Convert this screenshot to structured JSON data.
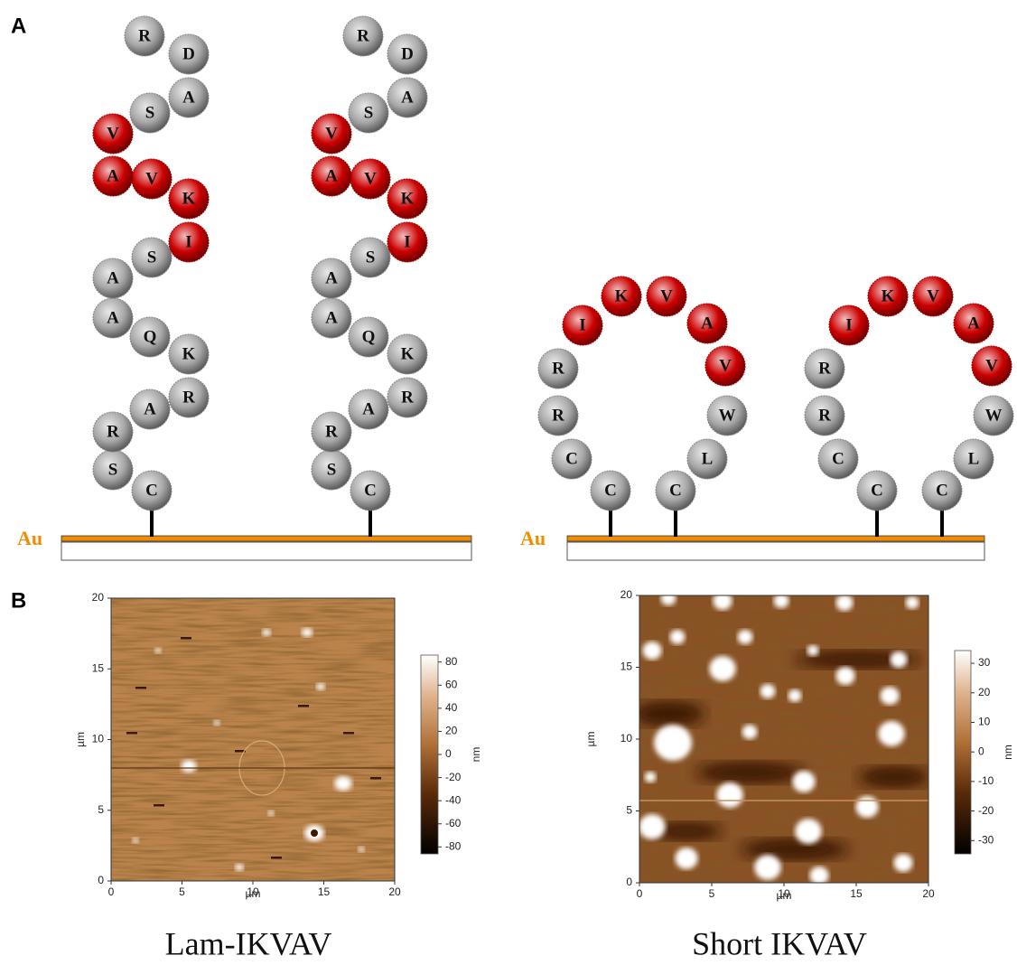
{
  "panel_a": {
    "label": "A",
    "substrate_label": "Au",
    "lam_ikvav": {
      "residues": [
        {
          "letter": "C",
          "color": "#a8a8a8"
        },
        {
          "letter": "S",
          "color": "#a8a8a8"
        },
        {
          "letter": "R",
          "color": "#a8a8a8"
        },
        {
          "letter": "A",
          "color": "#a8a8a8"
        },
        {
          "letter": "R",
          "color": "#a8a8a8"
        },
        {
          "letter": "K",
          "color": "#a8a8a8"
        },
        {
          "letter": "Q",
          "color": "#a8a8a8"
        },
        {
          "letter": "A",
          "color": "#a8a8a8"
        },
        {
          "letter": "A",
          "color": "#a8a8a8"
        },
        {
          "letter": "S",
          "color": "#a8a8a8"
        },
        {
          "letter": "I",
          "color": "#cc0000"
        },
        {
          "letter": "K",
          "color": "#cc0000"
        },
        {
          "letter": "V",
          "color": "#cc0000"
        },
        {
          "letter": "A",
          "color": "#cc0000"
        },
        {
          "letter": "V",
          "color": "#cc0000"
        },
        {
          "letter": "S",
          "color": "#a8a8a8"
        },
        {
          "letter": "A",
          "color": "#a8a8a8"
        },
        {
          "letter": "D",
          "color": "#a8a8a8"
        },
        {
          "letter": "R",
          "color": "#a8a8a8"
        }
      ]
    },
    "short_ikvav": {
      "residues": [
        {
          "letter": "C",
          "color": "#a8a8a8"
        },
        {
          "letter": "C",
          "color": "#a8a8a8"
        },
        {
          "letter": "R",
          "color": "#a8a8a8"
        },
        {
          "letter": "R",
          "color": "#a8a8a8"
        },
        {
          "letter": "I",
          "color": "#cc0000"
        },
        {
          "letter": "K",
          "color": "#cc0000"
        },
        {
          "letter": "V",
          "color": "#cc0000"
        },
        {
          "letter": "A",
          "color": "#cc0000"
        },
        {
          "letter": "V",
          "color": "#cc0000"
        },
        {
          "letter": "W",
          "color": "#a8a8a8"
        },
        {
          "letter": "L",
          "color": "#a8a8a8"
        },
        {
          "letter": "C",
          "color": "#a8a8a8"
        }
      ]
    }
  },
  "panel_b": {
    "label": "B",
    "images": [
      {
        "caption": "Lam-IKVAV",
        "xlabel": "µm",
        "ylabel": "µm",
        "xlim": [
          0,
          20
        ],
        "ylim": [
          0,
          20
        ],
        "xticks": [
          0,
          5,
          10,
          15,
          20
        ],
        "yticks": [
          0,
          5,
          10,
          15,
          20
        ],
        "colorbar_label": "nm",
        "colorbar_lim": [
          -86,
          86
        ],
        "colorbar_ticks": [
          80,
          60,
          40,
          20,
          0,
          -20,
          -40,
          -60,
          -80
        ]
      },
      {
        "caption": "Short IKVAV",
        "xlabel": "µm",
        "ylabel": "µm",
        "xlim": [
          0,
          20
        ],
        "ylim": [
          0,
          20
        ],
        "xticks": [
          0,
          5,
          10,
          15,
          20
        ],
        "yticks": [
          0,
          5,
          10,
          15,
          20
        ],
        "colorbar_label": "nm",
        "colorbar_lim": [
          -34.5,
          34.3
        ],
        "colorbar_ticks": [
          30,
          20,
          10,
          0,
          -10,
          -20,
          -30
        ]
      }
    ]
  }
}
